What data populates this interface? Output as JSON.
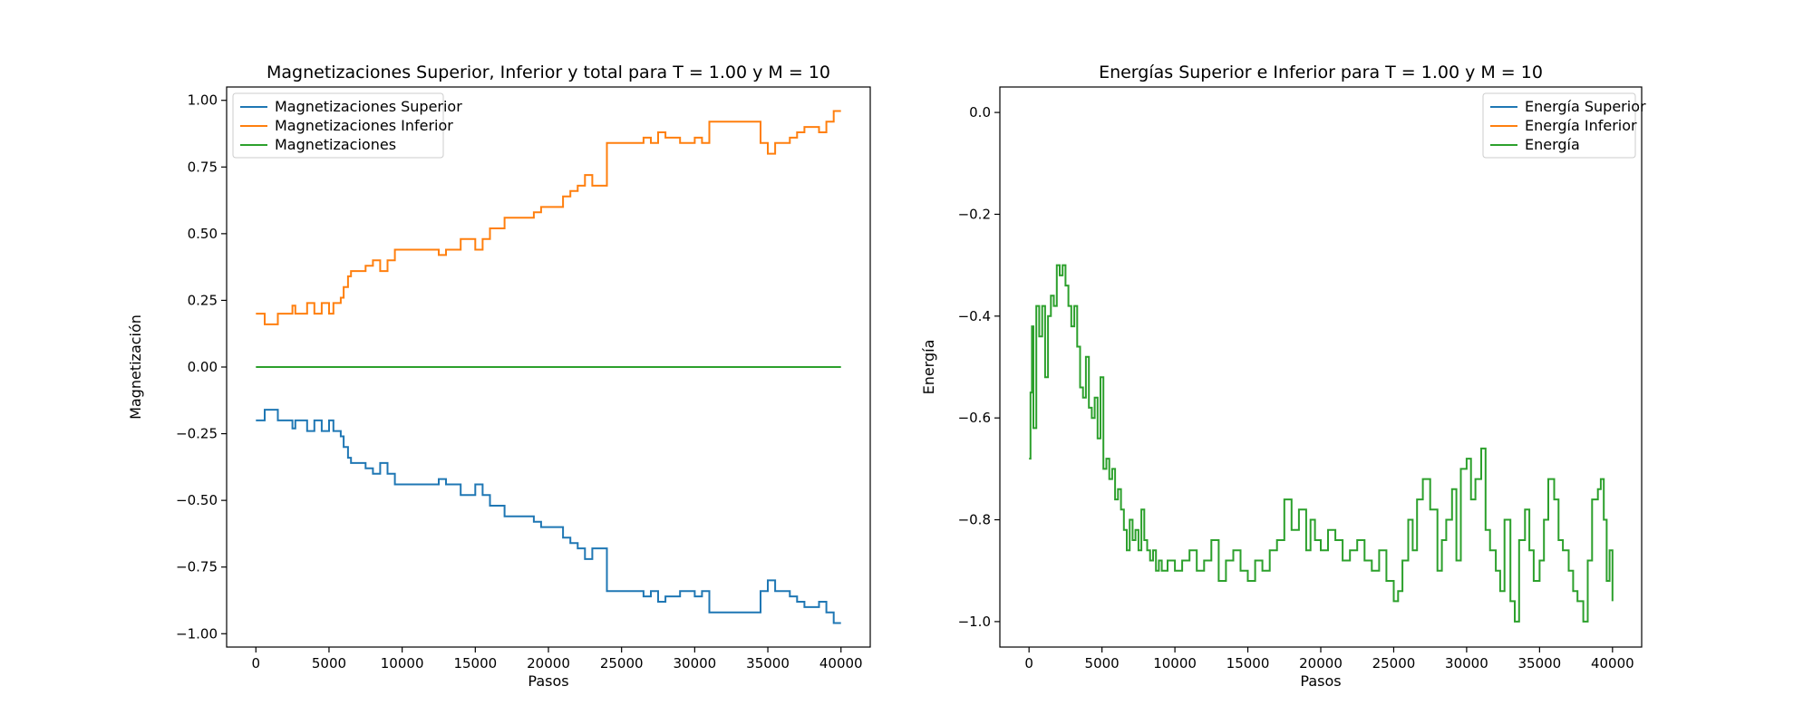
{
  "chart_data": [
    {
      "type": "line",
      "title": "Magnetizaciones Superior, Inferior y total para T = 1.00 y M = 10",
      "xlabel": "Pasos",
      "ylabel": "Magnetización",
      "xlim": [
        -2000,
        42000
      ],
      "ylim": [
        -1.05,
        1.05
      ],
      "xticks": [
        0,
        5000,
        10000,
        15000,
        20000,
        25000,
        30000,
        35000,
        40000
      ],
      "yticks": [
        -1.0,
        -0.75,
        -0.5,
        -0.25,
        0.0,
        0.25,
        0.5,
        0.75,
        1.0
      ],
      "xtick_labels": [
        "0",
        "5000",
        "10000",
        "15000",
        "20000",
        "25000",
        "30000",
        "35000",
        "40000"
      ],
      "ytick_labels": [
        "−1.00",
        "−0.75",
        "−0.50",
        "−0.25",
        "0.00",
        "0.25",
        "0.50",
        "0.75",
        "1.00"
      ],
      "legend_position": "top-left",
      "grid": false,
      "series": [
        {
          "name": "Magnetizaciones Superior",
          "color": "#1f77b4",
          "x": [
            0,
            200,
            600,
            1500,
            2200,
            2500,
            2700,
            3000,
            3500,
            4000,
            4500,
            5000,
            5300,
            5800,
            6000,
            6300,
            6500,
            7000,
            7500,
            8000,
            8500,
            9000,
            9500,
            10500,
            12000,
            12500,
            13000,
            13500,
            14000,
            15000,
            15500,
            16000,
            16500,
            17000,
            18000,
            19000,
            19500,
            20000,
            21000,
            21500,
            22000,
            22500,
            23000,
            23500,
            24000,
            25000,
            26000,
            26500,
            27000,
            27500,
            28000,
            29000,
            30000,
            30500,
            31000,
            32000,
            33000,
            34000,
            34500,
            35000,
            35500,
            36000,
            36500,
            37000,
            37500,
            38000,
            38500,
            39000,
            39500,
            40000
          ],
          "values": [
            -0.2,
            -0.2,
            -0.16,
            -0.2,
            -0.2,
            -0.23,
            -0.2,
            -0.2,
            -0.24,
            -0.2,
            -0.24,
            -0.2,
            -0.24,
            -0.26,
            -0.3,
            -0.34,
            -0.36,
            -0.36,
            -0.38,
            -0.4,
            -0.36,
            -0.4,
            -0.44,
            -0.44,
            -0.44,
            -0.42,
            -0.44,
            -0.44,
            -0.48,
            -0.44,
            -0.48,
            -0.52,
            -0.52,
            -0.56,
            -0.56,
            -0.58,
            -0.6,
            -0.6,
            -0.64,
            -0.66,
            -0.68,
            -0.72,
            -0.68,
            -0.68,
            -0.84,
            -0.84,
            -0.84,
            -0.86,
            -0.84,
            -0.88,
            -0.86,
            -0.84,
            -0.86,
            -0.84,
            -0.92,
            -0.92,
            -0.92,
            -0.92,
            -0.84,
            -0.8,
            -0.84,
            -0.84,
            -0.86,
            -0.88,
            -0.9,
            -0.9,
            -0.88,
            -0.92,
            -0.96,
            -0.96
          ]
        },
        {
          "name": "Magnetizaciones Inferior",
          "color": "#ff7f0e",
          "x": [
            0,
            200,
            600,
            1500,
            2200,
            2500,
            2700,
            3000,
            3500,
            4000,
            4500,
            5000,
            5300,
            5800,
            6000,
            6300,
            6500,
            7000,
            7500,
            8000,
            8500,
            9000,
            9500,
            10500,
            12000,
            12500,
            13000,
            13500,
            14000,
            15000,
            15500,
            16000,
            16500,
            17000,
            18000,
            19000,
            19500,
            20000,
            21000,
            21500,
            22000,
            22500,
            23000,
            23500,
            24000,
            25000,
            26000,
            26500,
            27000,
            27500,
            28000,
            29000,
            30000,
            30500,
            31000,
            32000,
            33000,
            34000,
            34500,
            35000,
            35500,
            36000,
            36500,
            37000,
            37500,
            38000,
            38500,
            39000,
            39500,
            40000
          ],
          "values": [
            0.2,
            0.2,
            0.16,
            0.2,
            0.2,
            0.23,
            0.2,
            0.2,
            0.24,
            0.2,
            0.24,
            0.2,
            0.24,
            0.26,
            0.3,
            0.34,
            0.36,
            0.36,
            0.38,
            0.4,
            0.36,
            0.4,
            0.44,
            0.44,
            0.44,
            0.42,
            0.44,
            0.44,
            0.48,
            0.44,
            0.48,
            0.52,
            0.52,
            0.56,
            0.56,
            0.58,
            0.6,
            0.6,
            0.64,
            0.66,
            0.68,
            0.72,
            0.68,
            0.68,
            0.84,
            0.84,
            0.84,
            0.86,
            0.84,
            0.88,
            0.86,
            0.84,
            0.86,
            0.84,
            0.92,
            0.92,
            0.92,
            0.92,
            0.84,
            0.8,
            0.84,
            0.84,
            0.86,
            0.88,
            0.9,
            0.9,
            0.88,
            0.92,
            0.96,
            0.96
          ]
        },
        {
          "name": "Magnetizaciones",
          "color": "#2ca02c",
          "x": [
            0,
            40000
          ],
          "values": [
            0.0,
            0.0
          ]
        }
      ]
    },
    {
      "type": "line",
      "title": "Energías Superior e Inferior para T = 1.00 y M = 10",
      "xlabel": "Pasos",
      "ylabel": "Energía",
      "xlim": [
        -2000,
        42000
      ],
      "ylim": [
        -1.05,
        0.05
      ],
      "xticks": [
        0,
        5000,
        10000,
        15000,
        20000,
        25000,
        30000,
        35000,
        40000
      ],
      "yticks": [
        -1.0,
        -0.8,
        -0.6,
        -0.4,
        -0.2,
        0.0
      ],
      "xtick_labels": [
        "0",
        "5000",
        "10000",
        "15000",
        "20000",
        "25000",
        "30000",
        "35000",
        "40000"
      ],
      "ytick_labels": [
        "−1.0",
        "−0.8",
        "−0.6",
        "−0.4",
        "−0.2",
        "0.0"
      ],
      "legend_position": "top-right",
      "grid": false,
      "series": [
        {
          "name": "Energía Superior",
          "color": "#1f77b4",
          "x": [],
          "values": []
        },
        {
          "name": "Energía Inferior",
          "color": "#ff7f0e",
          "x": [],
          "values": []
        },
        {
          "name": "Energía",
          "color": "#2ca02c",
          "x": [
            0,
            100,
            200,
            300,
            500,
            700,
            900,
            1100,
            1300,
            1500,
            1700,
            1900,
            2100,
            2300,
            2500,
            2700,
            2900,
            3100,
            3300,
            3500,
            3700,
            3900,
            4100,
            4300,
            4500,
            4700,
            4900,
            5100,
            5300,
            5500,
            5700,
            5900,
            6100,
            6300,
            6500,
            6700,
            6900,
            7100,
            7300,
            7500,
            7700,
            7900,
            8100,
            8300,
            8500,
            8700,
            8900,
            9100,
            9500,
            10000,
            10500,
            11000,
            11500,
            12000,
            12500,
            13000,
            13500,
            14000,
            14500,
            15000,
            15500,
            16000,
            16500,
            17000,
            17500,
            18000,
            18500,
            19000,
            19300,
            19600,
            20000,
            20500,
            21000,
            21500,
            22000,
            22500,
            23000,
            23500,
            24000,
            24500,
            25000,
            25300,
            25600,
            26000,
            26300,
            26600,
            27000,
            27500,
            28000,
            28300,
            28600,
            29000,
            29300,
            29600,
            30000,
            30300,
            30600,
            31000,
            31300,
            31600,
            32000,
            32300,
            32600,
            33000,
            33300,
            33600,
            34000,
            34300,
            34600,
            35000,
            35300,
            35600,
            36000,
            36300,
            36600,
            37000,
            37300,
            37600,
            38000,
            38300,
            38600,
            39000,
            39200,
            39400,
            39600,
            39800,
            40000
          ],
          "values": [
            -0.68,
            -0.55,
            -0.42,
            -0.62,
            -0.38,
            -0.44,
            -0.38,
            -0.52,
            -0.4,
            -0.36,
            -0.38,
            -0.3,
            -0.32,
            -0.3,
            -0.34,
            -0.38,
            -0.42,
            -0.38,
            -0.46,
            -0.54,
            -0.56,
            -0.48,
            -0.58,
            -0.6,
            -0.56,
            -0.64,
            -0.52,
            -0.7,
            -0.68,
            -0.72,
            -0.7,
            -0.76,
            -0.74,
            -0.78,
            -0.82,
            -0.86,
            -0.8,
            -0.84,
            -0.82,
            -0.86,
            -0.78,
            -0.84,
            -0.86,
            -0.88,
            -0.86,
            -0.9,
            -0.88,
            -0.9,
            -0.88,
            -0.9,
            -0.88,
            -0.86,
            -0.9,
            -0.88,
            -0.84,
            -0.92,
            -0.88,
            -0.86,
            -0.9,
            -0.92,
            -0.88,
            -0.9,
            -0.86,
            -0.84,
            -0.76,
            -0.82,
            -0.78,
            -0.86,
            -0.8,
            -0.84,
            -0.86,
            -0.82,
            -0.84,
            -0.88,
            -0.86,
            -0.84,
            -0.88,
            -0.9,
            -0.86,
            -0.92,
            -0.96,
            -0.94,
            -0.88,
            -0.8,
            -0.86,
            -0.76,
            -0.72,
            -0.78,
            -0.9,
            -0.84,
            -0.8,
            -0.74,
            -0.88,
            -0.7,
            -0.68,
            -0.76,
            -0.72,
            -0.66,
            -0.82,
            -0.86,
            -0.9,
            -0.94,
            -0.8,
            -0.96,
            -1.0,
            -0.84,
            -0.78,
            -0.86,
            -0.92,
            -0.88,
            -0.8,
            -0.72,
            -0.76,
            -0.84,
            -0.86,
            -0.9,
            -0.94,
            -0.96,
            -1.0,
            -0.88,
            -0.76,
            -0.74,
            -0.72,
            -0.8,
            -0.92,
            -0.86,
            -0.96
          ]
        }
      ]
    }
  ]
}
